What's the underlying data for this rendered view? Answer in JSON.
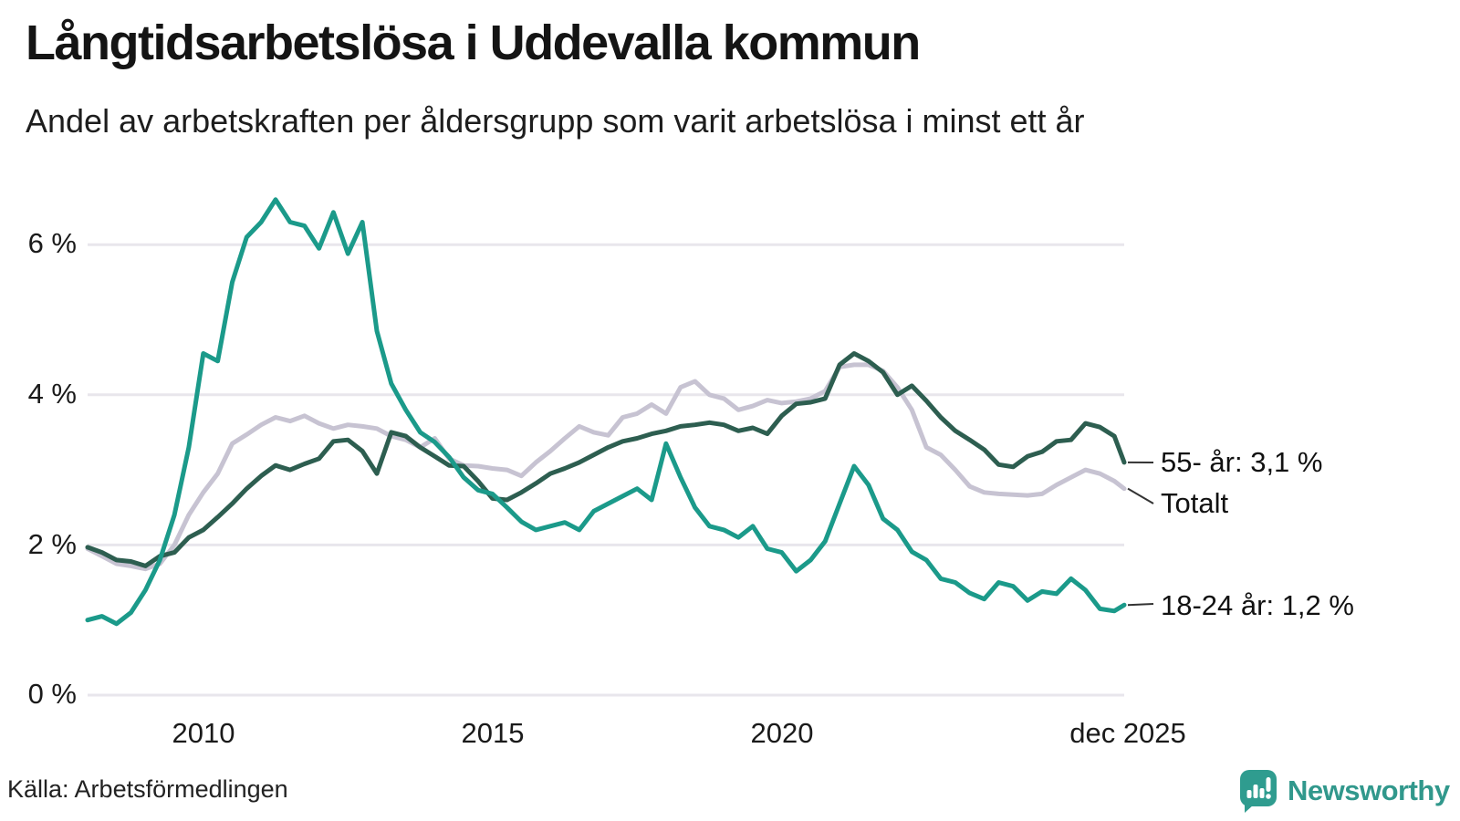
{
  "header": {
    "title": "Långtidsarbetslösa i Uddevalla kommun",
    "subtitle": "Andel av arbetskraften per åldersgrupp som varit arbetslösa i minst ett år"
  },
  "source": {
    "label": "Källa: Arbetsförmedlingen"
  },
  "branding": {
    "name": "Newsworthy",
    "logo_color": "#2F9C8F",
    "icon": "speech-bubble-bar-chart-icon"
  },
  "chart_data": {
    "type": "line",
    "title": "Långtidsarbetslösa i Uddevalla kommun",
    "subtitle": "Andel av arbetskraften per åldersgrupp som varit arbetslösa i minst ett år",
    "x_unit": "decimal_year",
    "x_range": [
      2008,
      2025.92
    ],
    "ylim": [
      0,
      6.9
    ],
    "grid": true,
    "grid_color": "#E8E6EC",
    "legend_position": "right-annotations",
    "yticks": [
      {
        "value": 0,
        "label": "0 %"
      },
      {
        "value": 2,
        "label": "2 %"
      },
      {
        "value": 4,
        "label": "4 %"
      },
      {
        "value": 6,
        "label": "6 %"
      }
    ],
    "xticks": [
      {
        "value": 2010,
        "label": "2010"
      },
      {
        "value": 2015,
        "label": "2015"
      },
      {
        "value": 2020,
        "label": "2020"
      },
      {
        "value": 2025.92,
        "label": "dec 2025"
      }
    ],
    "x": [
      2008,
      2008.25,
      2008.5,
      2008.75,
      2009,
      2009.25,
      2009.5,
      2009.75,
      2010,
      2010.25,
      2010.5,
      2010.75,
      2011,
      2011.25,
      2011.5,
      2011.75,
      2012,
      2012.25,
      2012.5,
      2012.75,
      2013,
      2013.25,
      2013.5,
      2013.75,
      2014,
      2014.25,
      2014.5,
      2014.75,
      2015,
      2015.25,
      2015.5,
      2015.75,
      2016,
      2016.25,
      2016.5,
      2016.75,
      2017,
      2017.25,
      2017.5,
      2017.75,
      2018,
      2018.25,
      2018.5,
      2018.75,
      2019,
      2019.25,
      2019.5,
      2019.75,
      2020,
      2020.25,
      2020.5,
      2020.75,
      2021,
      2021.25,
      2021.5,
      2021.75,
      2022,
      2022.25,
      2022.5,
      2022.75,
      2023,
      2023.25,
      2023.5,
      2023.75,
      2024,
      2024.25,
      2024.5,
      2024.75,
      2025,
      2025.25,
      2025.5,
      2025.75,
      2025.92
    ],
    "series": [
      {
        "name": "Totalt",
        "annotation": "Totalt",
        "last_value_label": null,
        "color": "#C7C3D2",
        "values": [
          1.95,
          1.85,
          1.75,
          1.72,
          1.68,
          1.75,
          2.0,
          2.4,
          2.7,
          2.95,
          3.35,
          3.47,
          3.6,
          3.7,
          3.65,
          3.72,
          3.62,
          3.55,
          3.6,
          3.58,
          3.55,
          3.45,
          3.4,
          3.3,
          3.42,
          3.15,
          3.06,
          3.05,
          3.02,
          3.0,
          2.92,
          3.1,
          3.25,
          3.42,
          3.58,
          3.5,
          3.46,
          3.7,
          3.75,
          3.87,
          3.75,
          4.1,
          4.18,
          4.0,
          3.95,
          3.8,
          3.85,
          3.93,
          3.89,
          3.91,
          3.95,
          4.05,
          4.37,
          4.4,
          4.4,
          4.32,
          4.1,
          3.8,
          3.3,
          3.2,
          3.0,
          2.78,
          2.7,
          2.68,
          2.67,
          2.66,
          2.68,
          2.8,
          2.9,
          3.0,
          2.95,
          2.85,
          2.75
        ]
      },
      {
        "name": "55- år",
        "annotation": "55- år: 3,1 %",
        "last_value_label": "3,1 %",
        "color": "#2D5E50",
        "values": [
          1.97,
          1.9,
          1.8,
          1.78,
          1.72,
          1.85,
          1.9,
          2.1,
          2.2,
          2.37,
          2.55,
          2.75,
          2.92,
          3.06,
          3.0,
          3.08,
          3.15,
          3.38,
          3.4,
          3.25,
          2.95,
          3.5,
          3.45,
          3.3,
          3.18,
          3.06,
          3.05,
          2.85,
          2.62,
          2.6,
          2.7,
          2.82,
          2.95,
          3.02,
          3.1,
          3.2,
          3.3,
          3.38,
          3.42,
          3.48,
          3.52,
          3.58,
          3.6,
          3.63,
          3.6,
          3.52,
          3.56,
          3.48,
          3.72,
          3.88,
          3.9,
          3.95,
          4.4,
          4.55,
          4.45,
          4.3,
          4.0,
          4.12,
          3.92,
          3.7,
          3.52,
          3.4,
          3.27,
          3.07,
          3.04,
          3.18,
          3.24,
          3.38,
          3.4,
          3.62,
          3.57,
          3.45,
          3.1
        ]
      },
      {
        "name": "18-24 år",
        "annotation": "18-24 år: 1,2 %",
        "last_value_label": "1,2 %",
        "color": "#1B9A8A",
        "values": [
          1.0,
          1.05,
          0.95,
          1.1,
          1.4,
          1.8,
          2.4,
          3.3,
          4.55,
          4.45,
          5.5,
          6.1,
          6.3,
          6.6,
          6.3,
          6.25,
          5.95,
          6.43,
          5.88,
          6.3,
          4.85,
          4.15,
          3.8,
          3.5,
          3.37,
          3.17,
          2.9,
          2.73,
          2.68,
          2.5,
          2.31,
          2.2,
          2.25,
          2.3,
          2.2,
          2.45,
          2.55,
          2.65,
          2.75,
          2.6,
          3.35,
          2.9,
          2.5,
          2.25,
          2.2,
          2.1,
          2.25,
          1.95,
          1.9,
          1.65,
          1.8,
          2.05,
          2.55,
          3.05,
          2.8,
          2.35,
          2.2,
          1.91,
          1.8,
          1.55,
          1.5,
          1.36,
          1.28,
          1.5,
          1.45,
          1.26,
          1.38,
          1.35,
          1.55,
          1.4,
          1.15,
          1.12,
          1.2
        ]
      }
    ]
  }
}
